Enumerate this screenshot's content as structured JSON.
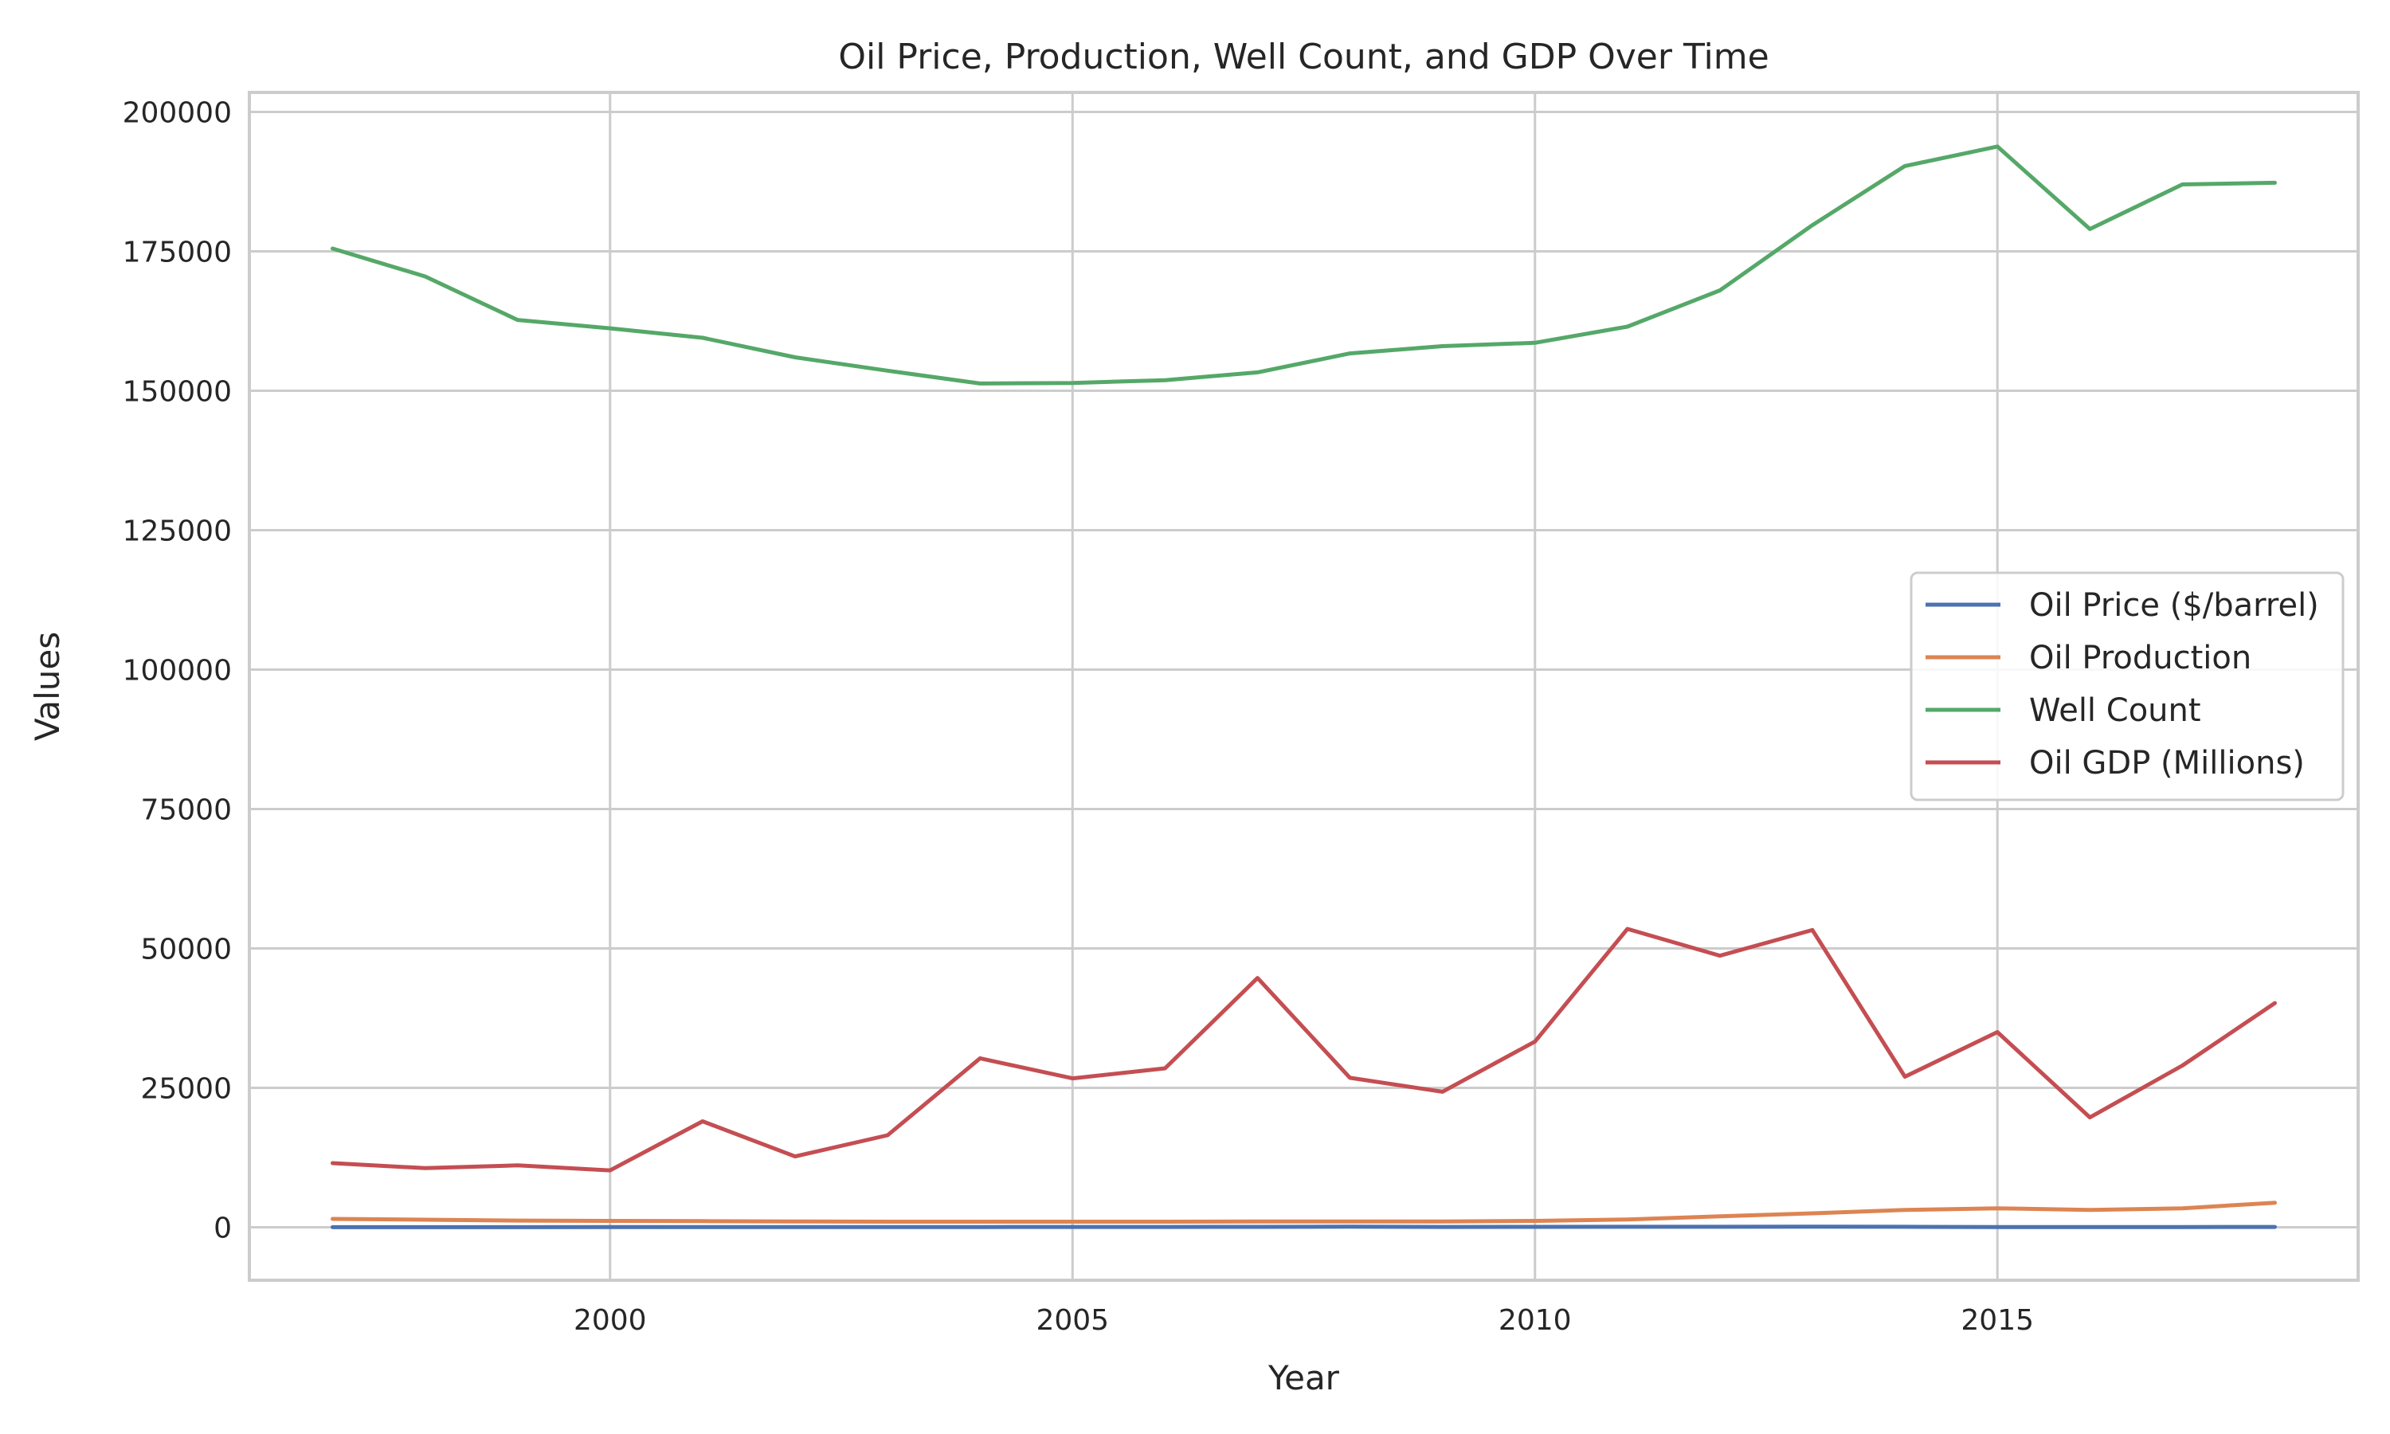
{
  "chart_data": {
    "type": "line",
    "title": "Oil Price, Production, Well Count, and GDP Over Time",
    "xlabel": "Year",
    "ylabel": "Values",
    "x": [
      1997,
      1998,
      1999,
      2000,
      2001,
      2002,
      2003,
      2004,
      2005,
      2006,
      2007,
      2008,
      2009,
      2010,
      2011,
      2012,
      2013,
      2014,
      2015,
      2016,
      2017,
      2018
    ],
    "xlim": [
      1996.1,
      2018.9
    ],
    "ylim": [
      -9500,
      203500
    ],
    "xticks": [
      2000,
      2005,
      2010,
      2015
    ],
    "yticks": [
      0,
      25000,
      50000,
      75000,
      100000,
      125000,
      150000,
      175000,
      200000
    ],
    "grid": true,
    "legend_position": "center-right",
    "series": [
      {
        "name": "Oil Price ($/barrel)",
        "color": "#4c72b0",
        "values": [
          19,
          12,
          17,
          28,
          24,
          24,
          29,
          38,
          52,
          62,
          68,
          94,
          56,
          76,
          91,
          89,
          95,
          86,
          45,
          37,
          47,
          59
        ]
      },
      {
        "name": "Oil Production",
        "color": "#dd8452",
        "values": [
          1500,
          1350,
          1200,
          1150,
          1100,
          1050,
          1000,
          1000,
          1000,
          1000,
          1050,
          1050,
          1050,
          1150,
          1400,
          1950,
          2500,
          3100,
          3400,
          3100,
          3400,
          4400
        ]
      },
      {
        "name": "Well Count",
        "color": "#55a868",
        "values": [
          175500,
          170500,
          162700,
          161200,
          159500,
          156000,
          153600,
          151300,
          151400,
          151900,
          153300,
          156700,
          158000,
          158600,
          161500,
          168000,
          179700,
          190300,
          193800,
          179000,
          187000,
          187300
        ]
      },
      {
        "name": "Oil GDP (Millions)",
        "color": "#c44e52",
        "values": [
          11500,
          10600,
          11100,
          10200,
          19000,
          12700,
          16500,
          30300,
          26700,
          28500,
          44700,
          26800,
          24300,
          33300,
          53500,
          48700,
          53300,
          27000,
          35000,
          19700,
          29000,
          40200
        ]
      }
    ]
  }
}
